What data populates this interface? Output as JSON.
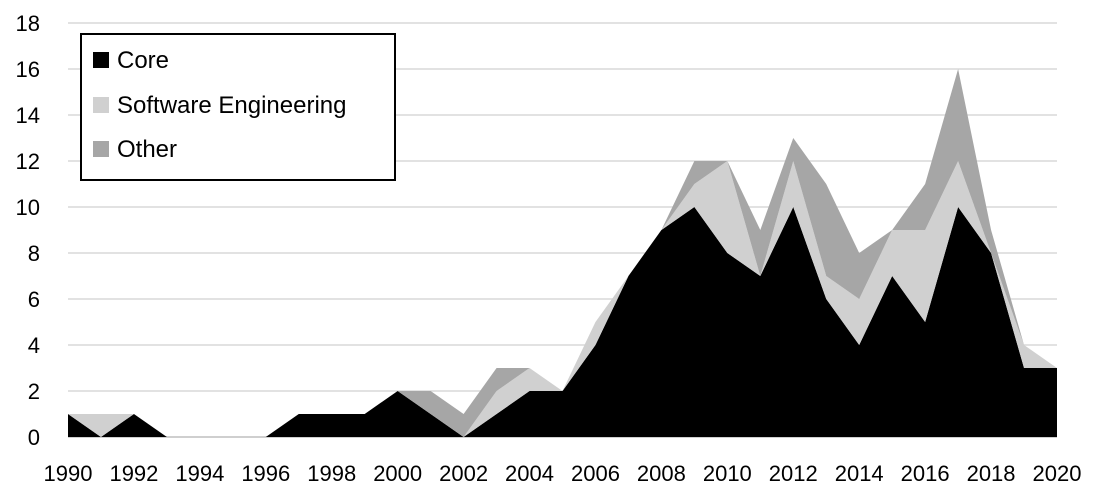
{
  "chart_data": {
    "type": "area",
    "stacked": true,
    "x": [
      1990,
      1991,
      1992,
      1993,
      1994,
      1995,
      1996,
      1997,
      1998,
      1999,
      2000,
      2001,
      2002,
      2003,
      2004,
      2005,
      2006,
      2007,
      2008,
      2009,
      2010,
      2011,
      2012,
      2013,
      2014,
      2015,
      2016,
      2017,
      2018,
      2019,
      2020
    ],
    "series": [
      {
        "name": "Core",
        "color": "#000000",
        "values": [
          1,
          0,
          1,
          0,
          0,
          0,
          0,
          1,
          1,
          1,
          2,
          1,
          0,
          1,
          2,
          2,
          4,
          7,
          9,
          10,
          8,
          7,
          10,
          6,
          4,
          7,
          5,
          10,
          8,
          3,
          3
        ]
      },
      {
        "name": "Software Engineering",
        "color": "#d0d0d0",
        "values": [
          0,
          1,
          0,
          0,
          0,
          0,
          0,
          0,
          0,
          0,
          0,
          0,
          0,
          1,
          1,
          0,
          1,
          0,
          0,
          1,
          4,
          0,
          2,
          1,
          2,
          2,
          4,
          2,
          0,
          1,
          0
        ]
      },
      {
        "name": "Other",
        "color": "#a6a6a6",
        "values": [
          0,
          0,
          0,
          0,
          0,
          0,
          0,
          0,
          0,
          0,
          0,
          1,
          1,
          1,
          0,
          0,
          0,
          0,
          0,
          1,
          0,
          2,
          1,
          4,
          2,
          0,
          2,
          4,
          1,
          0,
          0
        ]
      }
    ],
    "ylim": [
      0,
      18
    ],
    "yticks": [
      0,
      2,
      4,
      6,
      8,
      10,
      12,
      14,
      16,
      18
    ],
    "xticks": [
      1990,
      1992,
      1994,
      1996,
      1998,
      2000,
      2002,
      2004,
      2006,
      2008,
      2010,
      2012,
      2014,
      2016,
      2018,
      2020
    ],
    "grid": "horizontal",
    "legend_position": "top-left",
    "title": "",
    "xlabel": "",
    "ylabel": ""
  }
}
